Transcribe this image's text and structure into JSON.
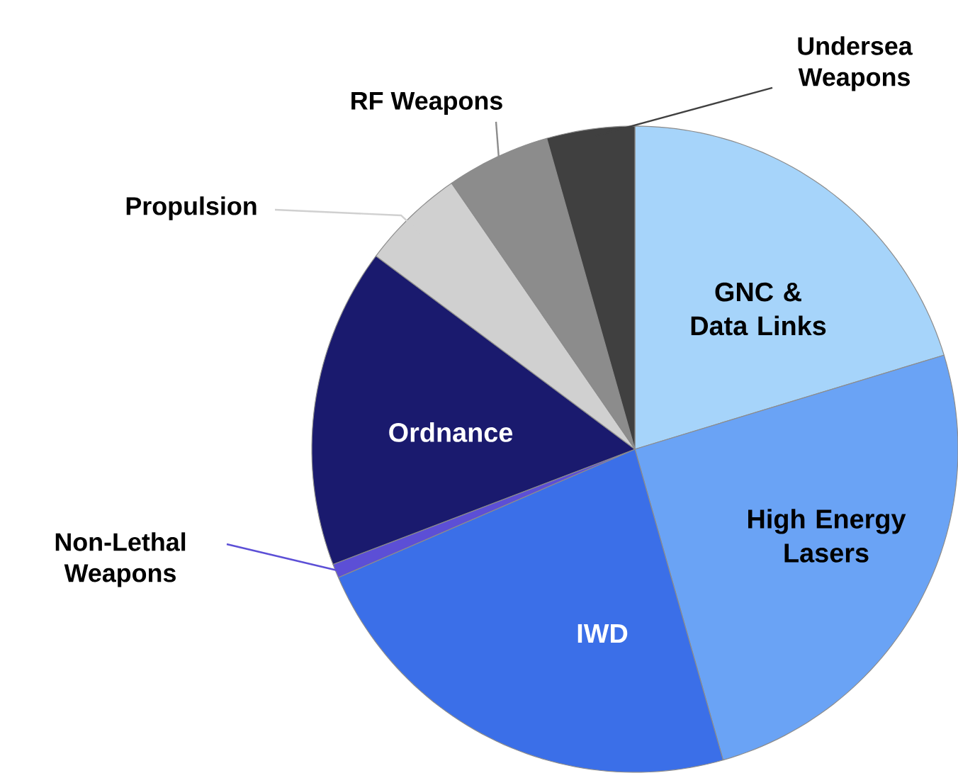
{
  "chart_data": {
    "type": "pie",
    "categories": [
      "GNC & Data Links",
      "High Energy Lasers",
      "IWD",
      "Non-Lethal Weapons",
      "Ordnance",
      "Propulsion",
      "RF Weapons",
      "Undersea Weapons"
    ],
    "values": [
      20.3,
      25.3,
      22.9,
      0.7,
      16.0,
      5.2,
      5.2,
      4.4
    ],
    "colors": [
      "#a6d4fa",
      "#6aa3f5",
      "#3b6fe8",
      "#5c4fd6",
      "#1a1a6e",
      "#d0d0d0",
      "#8c8c8c",
      "#404040"
    ]
  }
}
